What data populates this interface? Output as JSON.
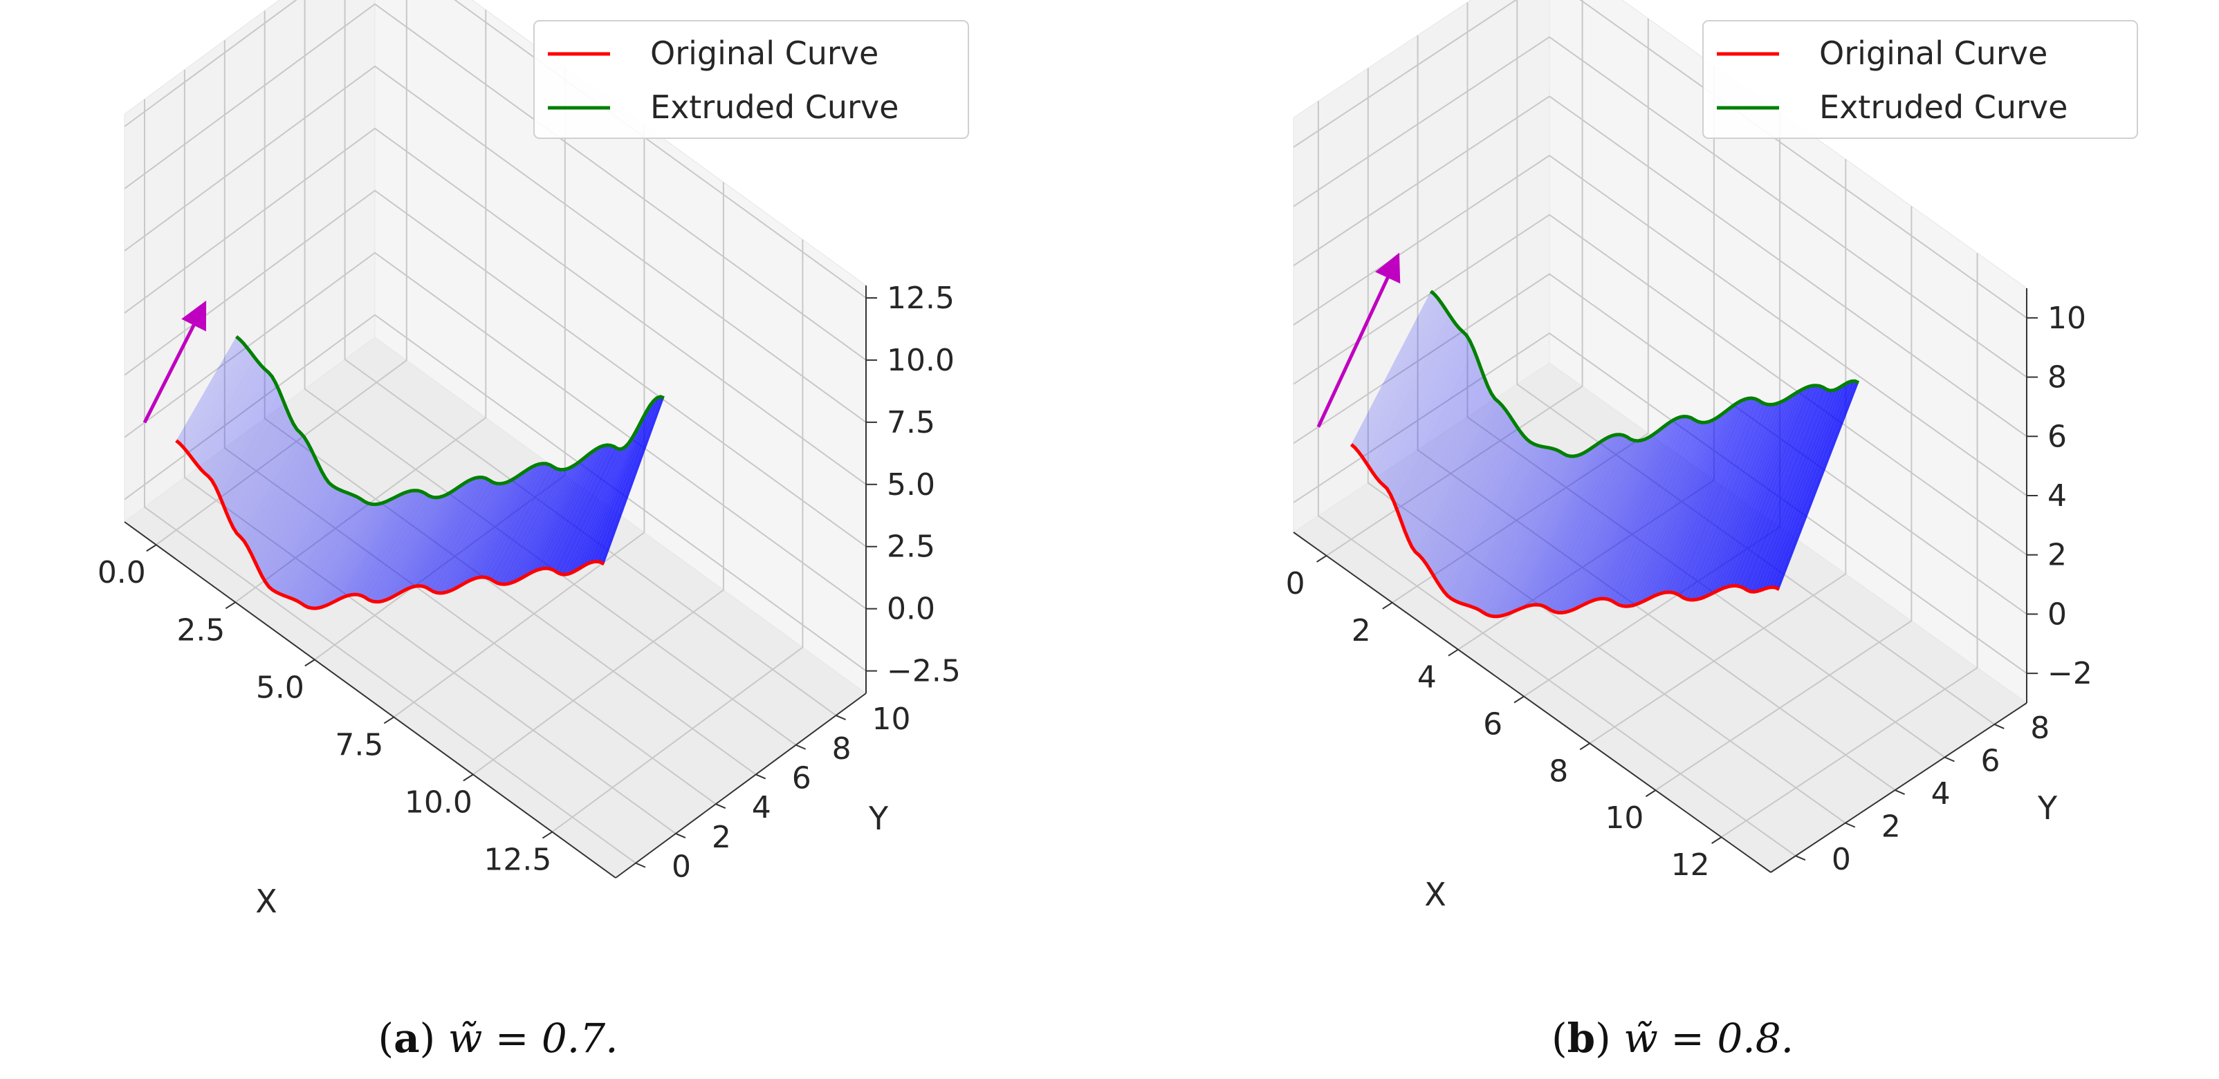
{
  "chart_data": [
    {
      "type": "3d-surface",
      "subcaption_label": "a",
      "subcaption_math": "w̃ = 0.7.",
      "legend_location": "upper-right",
      "legend": [
        {
          "label": "Original Curve",
          "color": "#ff0000"
        },
        {
          "label": "Extruded Curve",
          "color": "#008000"
        }
      ],
      "xlabel": "X",
      "ylabel": "Y",
      "xlim": [
        -1.0,
        14.5
      ],
      "ylim": [
        -1.0,
        11.5
      ],
      "zlim": [
        -3.4,
        13.0
      ],
      "x_ticks": [
        0.0,
        2.5,
        5.0,
        7.5,
        10.0,
        12.5
      ],
      "x_tick_labels": [
        "0.0",
        "2.5",
        "5.0",
        "7.5",
        "10.0",
        "12.5"
      ],
      "y_ticks": [
        0,
        2,
        4,
        6,
        8,
        10
      ],
      "y_tick_labels": [
        "0",
        "2",
        "4",
        "6",
        "8",
        "10"
      ],
      "z_ticks": [
        -2.5,
        0.0,
        2.5,
        5.0,
        7.5,
        10.0,
        12.5
      ],
      "z_tick_labels": [
        "−2.5",
        "0.0",
        "2.5",
        "5.0",
        "7.5",
        "10.0",
        "12.5"
      ],
      "grid": true,
      "extrusion_vector": {
        "x": 0.0,
        "y": 3.0,
        "z": 3.0
      },
      "arrow_start": {
        "x": -1.0,
        "y": 0.0,
        "z": 0.0
      },
      "arrow_color": "#c000c0",
      "surface_color": "#0000ff",
      "original_curve": {
        "x": [
          0.0,
          1.0,
          2.0,
          3.0,
          4.0,
          6.0,
          8.0,
          10.0,
          12.0,
          13.5
        ],
        "y": [
          0,
          0,
          0,
          0,
          0,
          0,
          0,
          0,
          0,
          0
        ],
        "z": [
          0.2,
          -0.3,
          -1.8,
          -3.0,
          -2.7,
          -0.6,
          1.6,
          3.8,
          6.0,
          7.7
        ]
      },
      "extruded_curve": {
        "x": [
          0.0,
          1.0,
          2.0,
          3.0,
          4.0,
          6.0,
          8.0,
          10.0,
          12.0,
          13.5
        ],
        "y": [
          3,
          3,
          3,
          3,
          3,
          3,
          3,
          3,
          3,
          3
        ],
        "z": [
          2.6,
          2.1,
          0.6,
          -0.6,
          -0.3,
          1.8,
          4.2,
          6.6,
          9.2,
          12.6
        ]
      }
    },
    {
      "type": "3d-surface",
      "subcaption_label": "b",
      "subcaption_math": "w̃ = 0.8.",
      "legend_location": "upper-right",
      "legend": [
        {
          "label": "Original Curve",
          "color": "#ff0000"
        },
        {
          "label": "Extruded Curve",
          "color": "#008000"
        }
      ],
      "xlabel": "X",
      "ylabel": "Y",
      "xlim": [
        -1.0,
        13.5
      ],
      "ylim": [
        -1.0,
        9.3
      ],
      "zlim": [
        -3.0,
        11.0
      ],
      "x_ticks": [
        0,
        2,
        4,
        6,
        8,
        10,
        12
      ],
      "x_tick_labels": [
        "0",
        "2",
        "4",
        "6",
        "8",
        "10",
        "12"
      ],
      "y_ticks": [
        0,
        2,
        4,
        6,
        8
      ],
      "y_tick_labels": [
        "0",
        "2",
        "4",
        "6",
        "8"
      ],
      "z_ticks": [
        -2,
        0,
        2,
        4,
        6,
        8,
        10
      ],
      "z_tick_labels": [
        "−2",
        "0",
        "2",
        "4",
        "6",
        "8",
        "10"
      ],
      "grid": true,
      "extrusion_vector": {
        "x": 0.0,
        "y": 3.2,
        "z": 4.0
      },
      "arrow_start": {
        "x": -1.0,
        "y": 0.0,
        "z": 0.0
      },
      "arrow_color": "#c000c0",
      "surface_color": "#0000ff",
      "original_curve": {
        "x": [
          0.0,
          1.0,
          2.0,
          3.0,
          4.0,
          6.0,
          8.0,
          10.0,
          12.0,
          13.0
        ],
        "y": [
          0,
          0,
          0,
          0,
          0,
          0,
          0,
          0,
          0,
          0
        ],
        "z": [
          0.2,
          -0.4,
          -1.9,
          -2.6,
          -2.3,
          -0.6,
          1.2,
          3.0,
          4.8,
          5.6
        ]
      },
      "extruded_curve": {
        "x": [
          0.0,
          1.0,
          2.0,
          3.0,
          4.0,
          6.0,
          8.0,
          10.0,
          12.0,
          13.0
        ],
        "y": [
          3.2,
          3.2,
          3.2,
          3.2,
          3.2,
          3.2,
          3.2,
          3.2,
          3.2,
          3.2
        ],
        "z": [
          3.6,
          3.0,
          1.5,
          0.9,
          1.3,
          3.4,
          5.6,
          7.8,
          9.8,
          10.8
        ]
      }
    }
  ]
}
